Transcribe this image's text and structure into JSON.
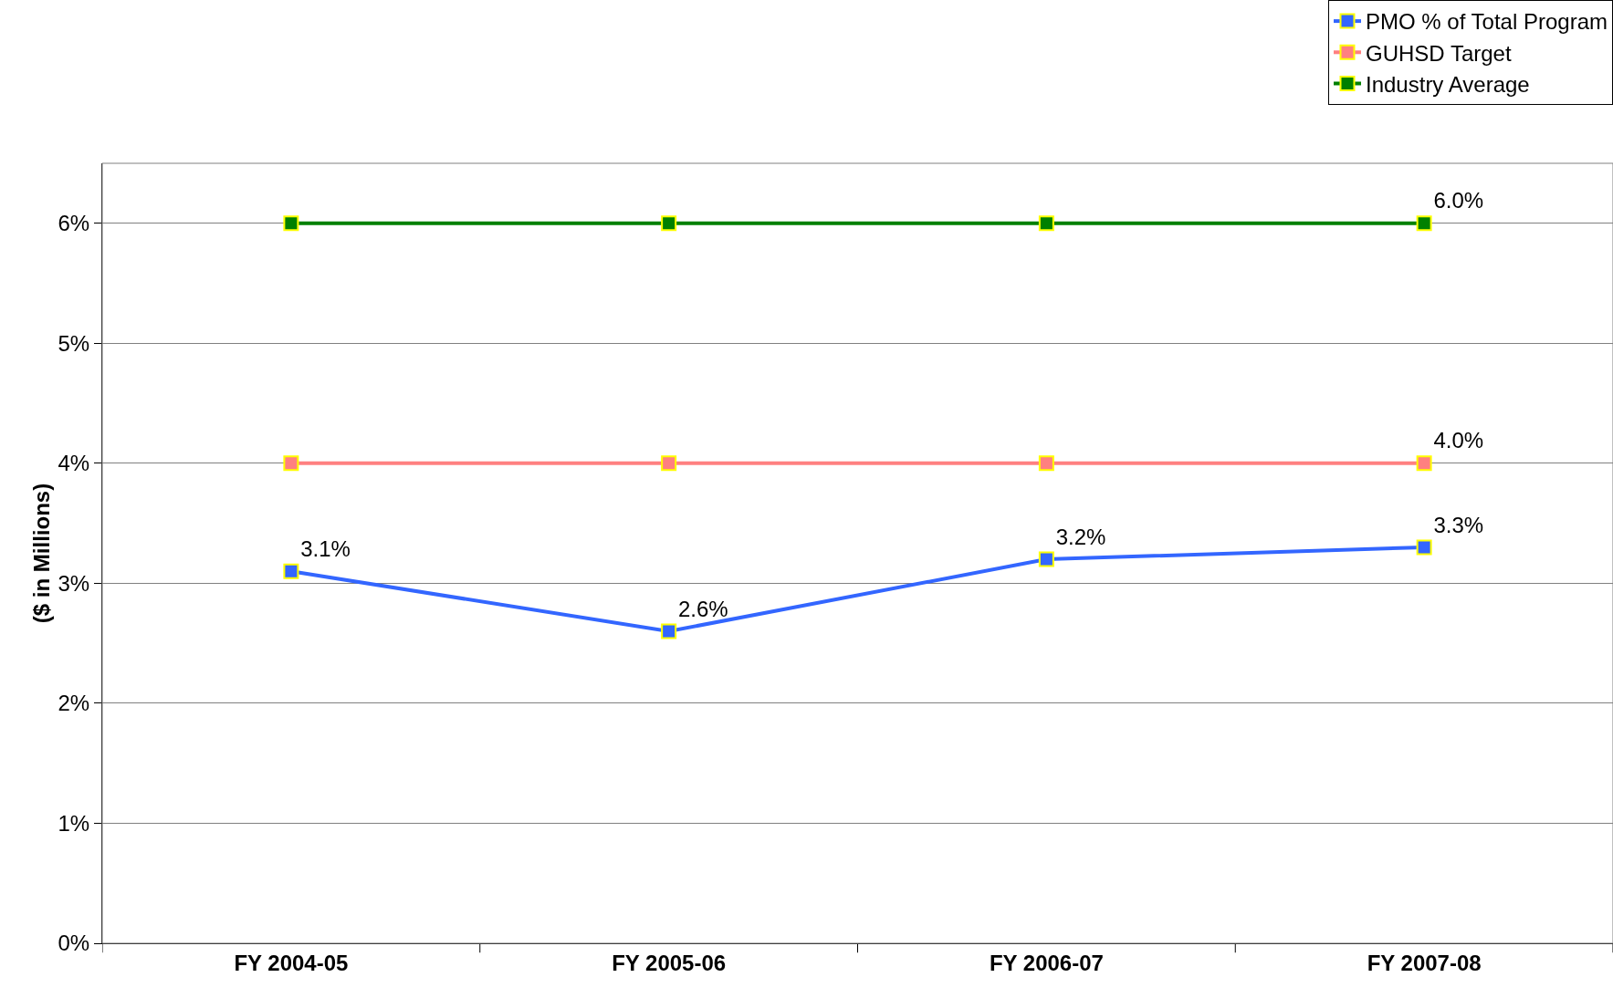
{
  "chart_data": {
    "type": "line",
    "ylabel": "($ in Millions)",
    "categories": [
      "FY 2004-05",
      "FY 2005-06",
      "FY 2006-07",
      "FY 2007-08"
    ],
    "series": [
      {
        "name": "PMO % of Total Program",
        "color": "#3366ff",
        "values": [
          3.1,
          2.6,
          3.2,
          3.3
        ],
        "value_labels": [
          "3.1%",
          "2.6%",
          "3.2%",
          "3.3%"
        ]
      },
      {
        "name": "GUHSD Target",
        "color": "#ff8080",
        "values": [
          4,
          4,
          4,
          4
        ],
        "value_labels": [
          null,
          null,
          null,
          "4.0%"
        ]
      },
      {
        "name": "Industry Average",
        "color": "#008000",
        "values": [
          6,
          6,
          6,
          6
        ],
        "value_labels": [
          null,
          null,
          null,
          "6.0%"
        ]
      }
    ],
    "ylim": [
      0,
      6.5
    ],
    "yticks": [
      {
        "value": 0,
        "label": "0%"
      },
      {
        "value": 1,
        "label": "1%"
      },
      {
        "value": 2,
        "label": "2%"
      },
      {
        "value": 3,
        "label": "3%"
      },
      {
        "value": 4,
        "label": "4%"
      },
      {
        "value": 5,
        "label": "5%"
      },
      {
        "value": 6,
        "label": "6%"
      }
    ],
    "grid": "y",
    "legend": "top right",
    "marker": "square",
    "line_style": "solid"
  }
}
